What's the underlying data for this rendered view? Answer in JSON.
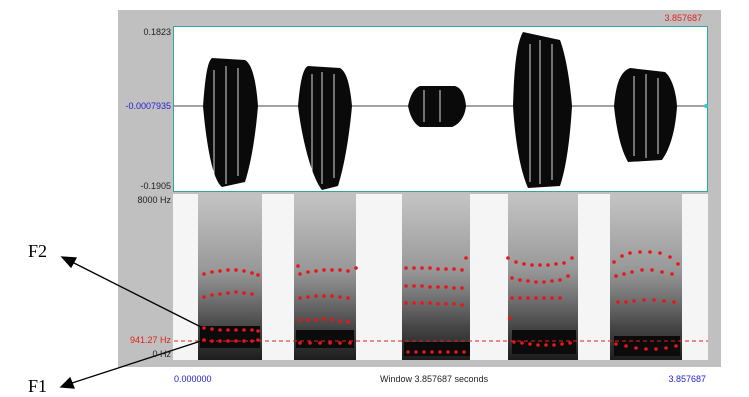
{
  "window": {
    "time_end_top": "3.857687"
  },
  "waveform": {
    "y_max_label": "0.1823",
    "y_mid_label": "-0.0007935",
    "y_min_label": "-0.1905"
  },
  "spectrogram": {
    "freq_max_label": "8000 Hz",
    "cursor_freq_label": "941.27 Hz",
    "freq_min_label": "0 Hz"
  },
  "time_axis": {
    "start_label": "0.000000",
    "window_label": "Window 3.857687 seconds",
    "end_label": "3.857687"
  },
  "annotations": {
    "f2_label": "F2",
    "f1_label": "F1"
  },
  "colors": {
    "frame": "#c0c0c0",
    "cursor": "#e02020",
    "formant_dots": "#e8161a",
    "time_labels": "#2222cc",
    "panel_border": "#33a3a3"
  }
}
